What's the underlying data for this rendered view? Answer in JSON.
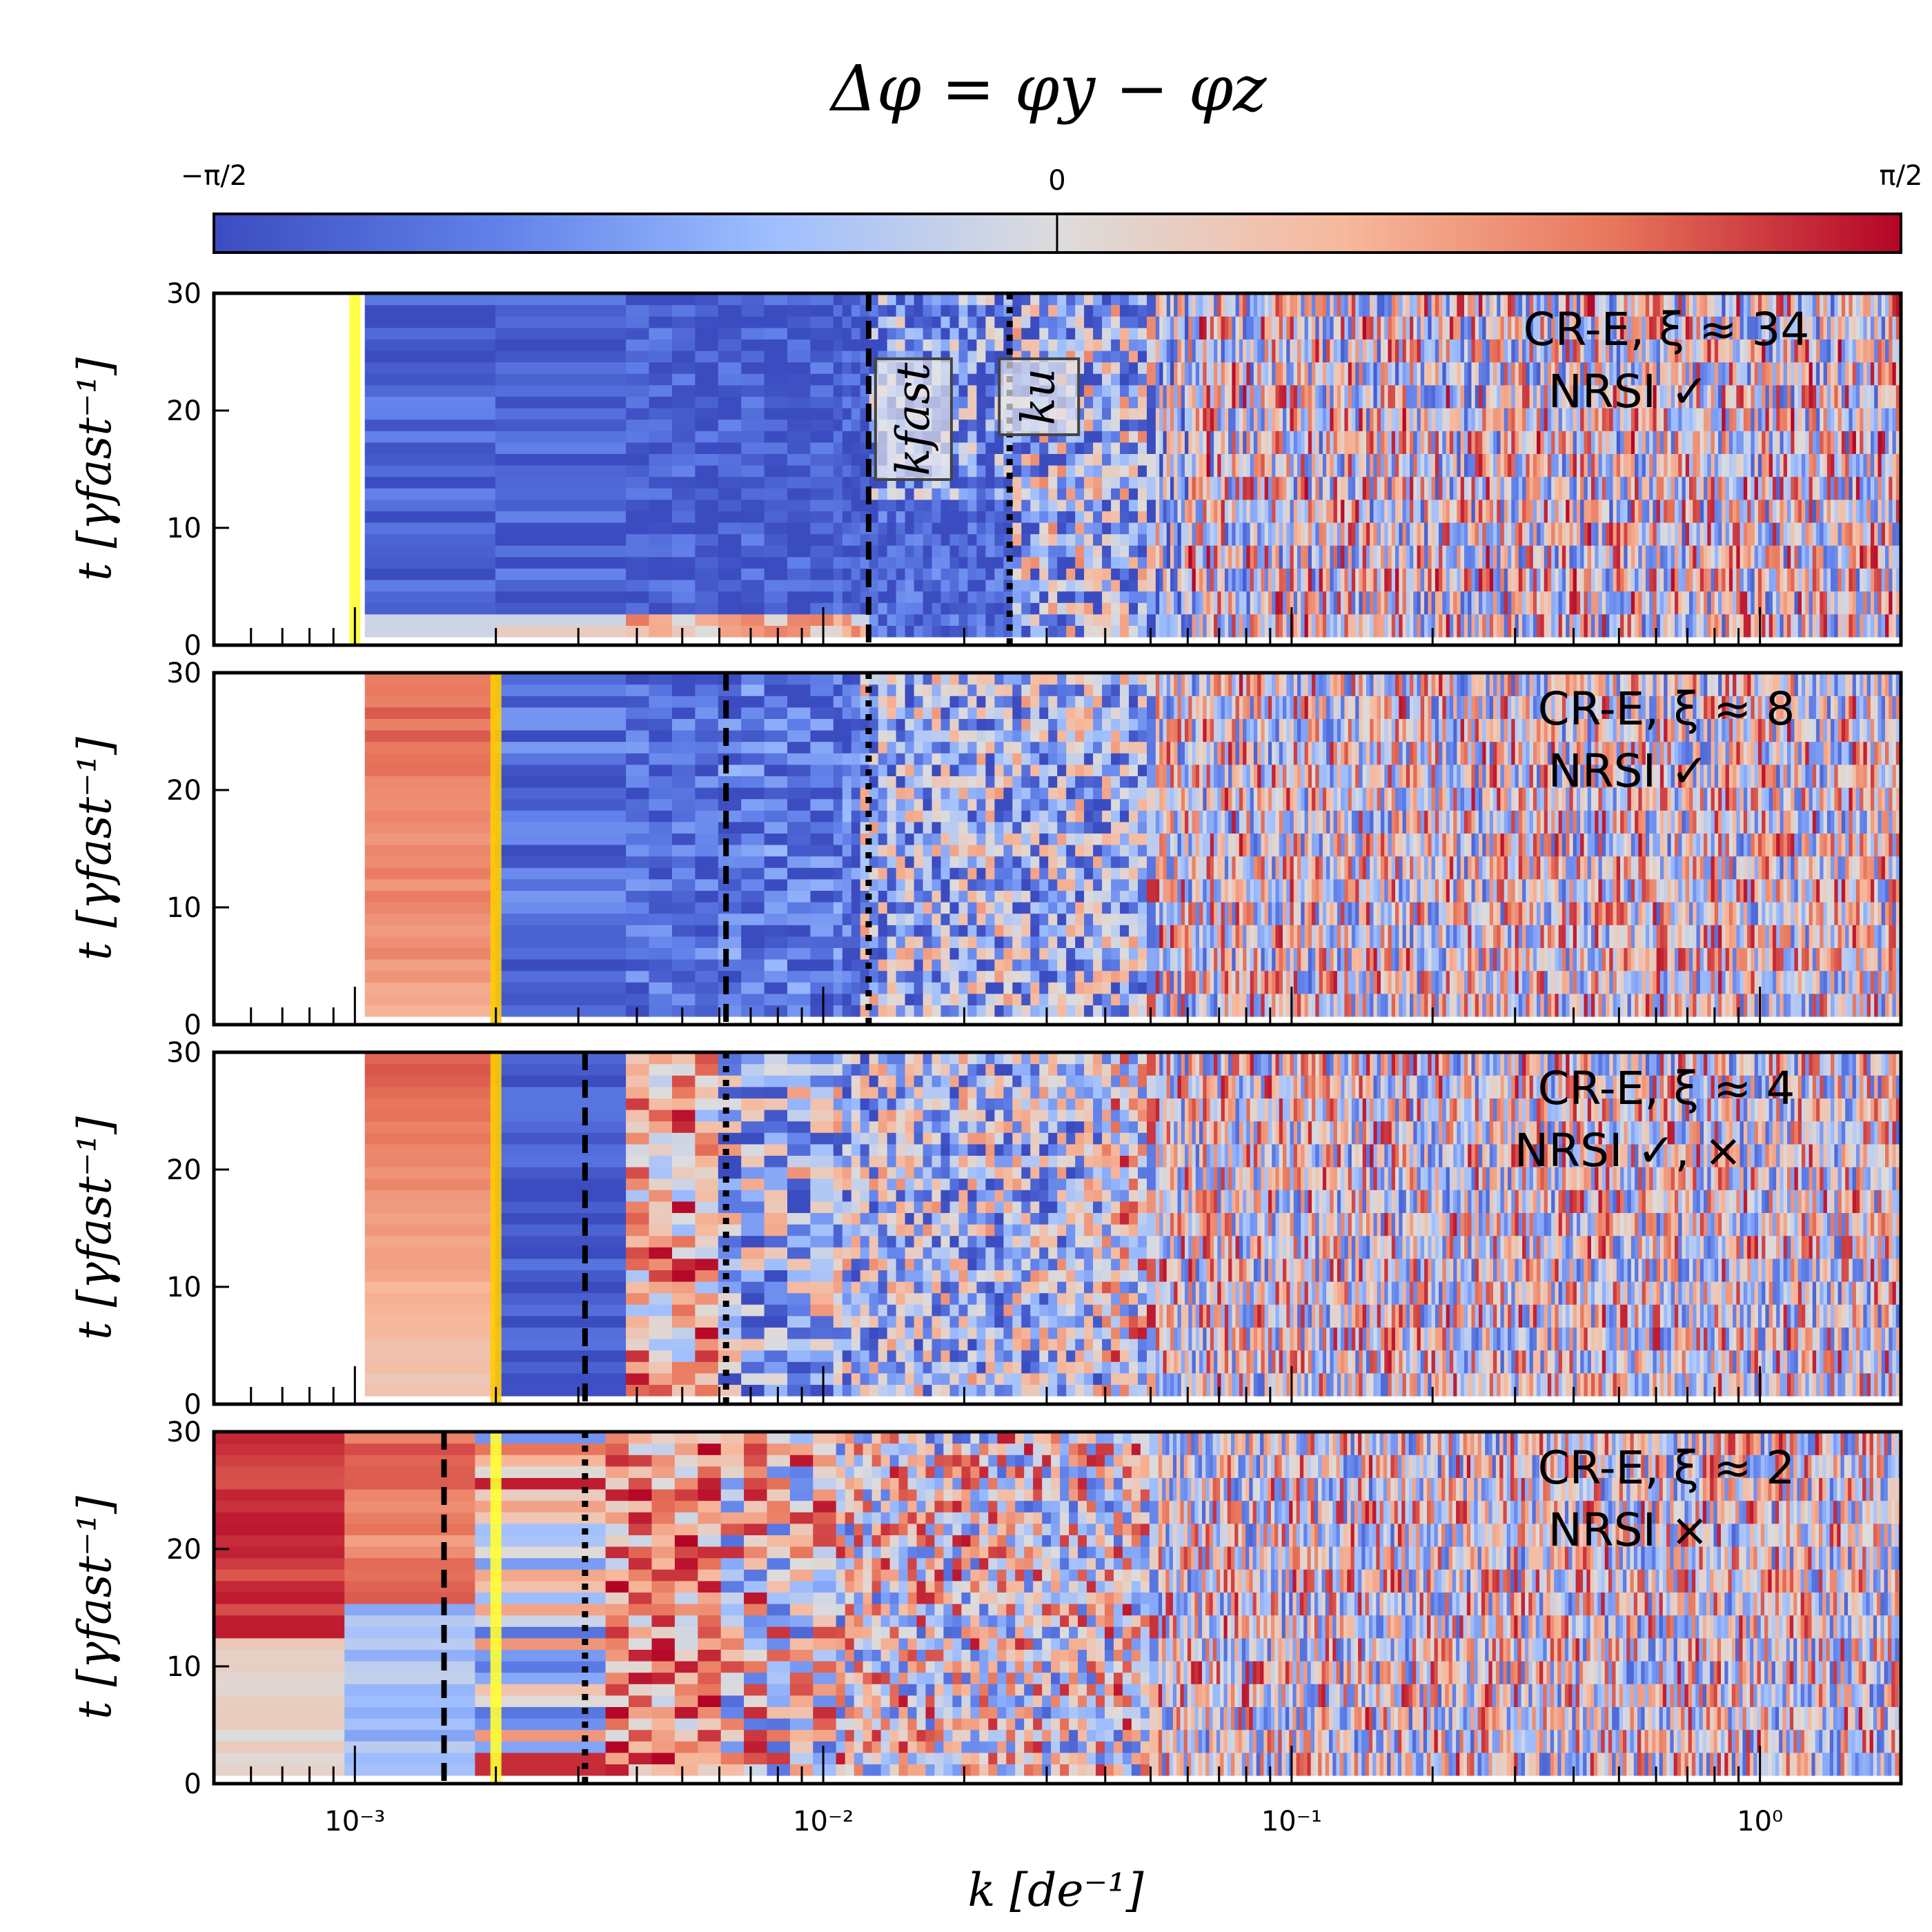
{
  "title": "Δφ = φy − φz",
  "colorbar": {
    "min_label": "−π/2",
    "mid_label": "0",
    "max_label": "π/2",
    "colormap": "coolwarm",
    "colors": [
      "#3b4cc0",
      "#7396f5",
      "#b0cbfc",
      "#dddcdc",
      "#f6b89c",
      "#e7745b",
      "#b40426"
    ]
  },
  "xaxis": {
    "label": "k [de⁻¹]",
    "scale": "log",
    "range": [
      0.0005,
      2.0
    ],
    "tick_labels": [
      "10⁻³",
      "10⁻²",
      "10⁻¹",
      "10⁰"
    ],
    "tick_values": [
      0.001,
      0.01,
      0.1,
      1
    ]
  },
  "yaxis": {
    "label": "t [γfast⁻¹]",
    "range": [
      0,
      30
    ],
    "tick_labels": [
      "0",
      "10",
      "20",
      "30"
    ],
    "tick_values": [
      0,
      10,
      20,
      30
    ]
  },
  "inset_labels": {
    "k_fast": "kfast",
    "k_u": "ku"
  },
  "chart_data": [
    {
      "type": "heatmap",
      "panel": "CR-E, ξ ≈ 34",
      "annotation_line1": "CR-E, ξ ≈ 34",
      "annotation_line2": "NRSI ✓",
      "k_min": 0.00105,
      "yellow_line_k": 0.001,
      "k_fast": 0.0125,
      "k_u": 0.025,
      "structure": "low k (<0.0125) mostly Δφ≈−π/2 (blue) for t>2; high k random noise"
    },
    {
      "type": "heatmap",
      "panel": "CR-E, ξ ≈ 8",
      "annotation_line1": "CR-E, ξ ≈ 8",
      "annotation_line2": "NRSI ✓",
      "k_min": 0.00105,
      "yellow_line_k": 0.002,
      "k_fast": 0.0062,
      "k_u": 0.0125,
      "structure": "k<0.002 red (Δφ≈+π/2); 0.002–0.012 blue; high k random"
    },
    {
      "type": "heatmap",
      "panel": "CR-E, ξ ≈ 4",
      "annotation_line1": "CR-E, ξ ≈ 4",
      "annotation_line2": "NRSI ✓, ×",
      "k_min": 0.00105,
      "yellow_line_k": 0.002,
      "k_fast": 0.0031,
      "k_u": 0.0062,
      "structure": "k<0.002 red; 0.002–0.004 blue; mixed red/blue up to 0.006; high k random"
    },
    {
      "type": "heatmap",
      "panel": "CR-E, ξ ≈ 2",
      "annotation_line1": "CR-E, ξ ≈ 2",
      "annotation_line2": "NRSI ×",
      "k_min": 0.0005,
      "yellow_line_k": 0.002,
      "k_fast": 0.00155,
      "k_u": 0.0031,
      "structure": "lowest bin blue; 0.0006–0.0015 red at late t; mixed 0.0015–0.006; high k random"
    }
  ]
}
